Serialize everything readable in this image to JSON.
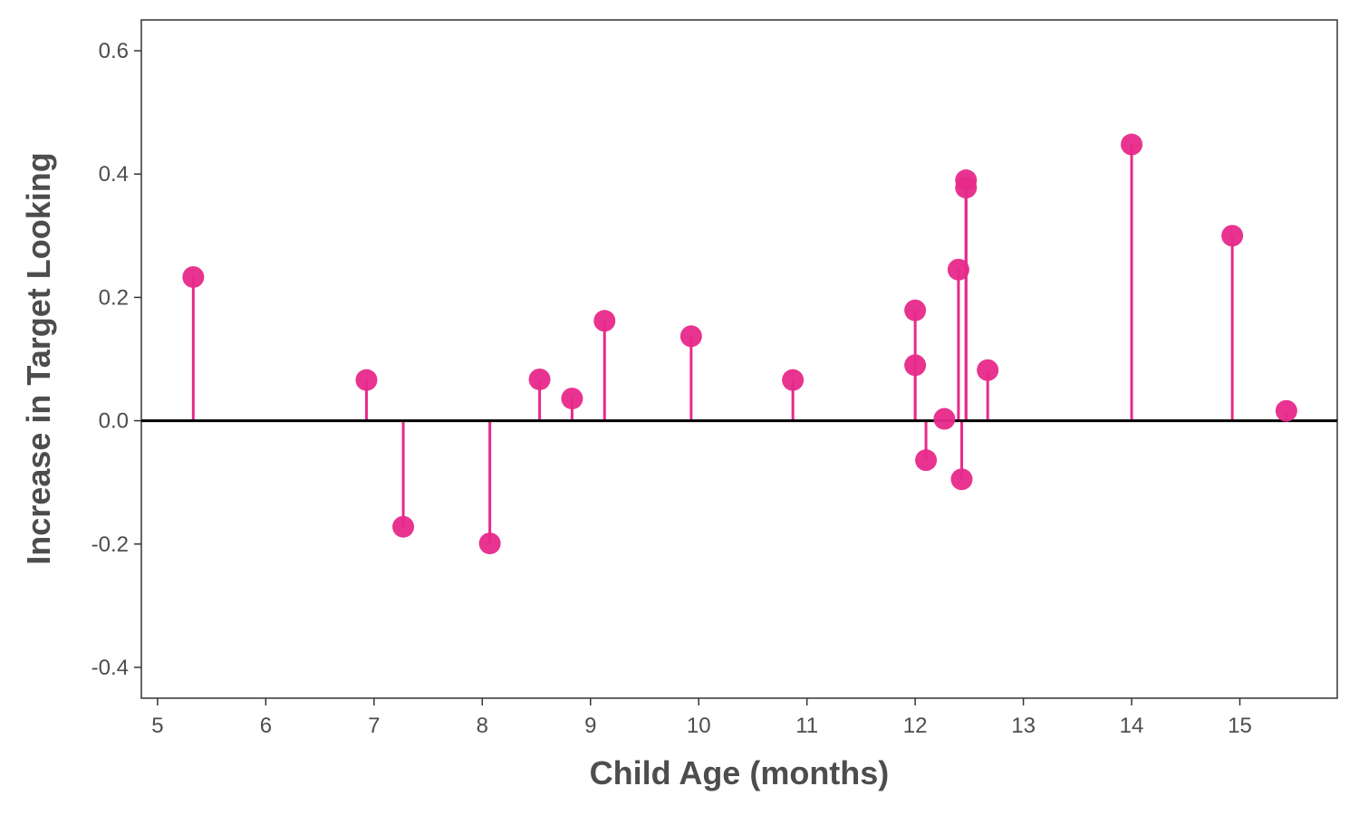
{
  "chart_data": {
    "type": "scatter",
    "style": "lollipop",
    "xlabel": "Child Age (months)",
    "ylabel": "Increase in Target Looking",
    "xlim": [
      4.85,
      15.9
    ],
    "ylim": [
      -0.45,
      0.65
    ],
    "xticks": [
      5,
      6,
      7,
      8,
      9,
      10,
      11,
      12,
      13,
      14,
      15
    ],
    "yticks": [
      -0.4,
      -0.2,
      0.0,
      0.2,
      0.4,
      0.6
    ],
    "ytick_labels": [
      "-0.4",
      "-0.2",
      "0.0",
      "0.2",
      "0.4",
      "0.6"
    ],
    "reference_line_y": 0.0,
    "grid": false,
    "colors": {
      "point": "#e7298a",
      "reference_line": "#000000",
      "axis": "#333333",
      "text": "#4d4d4d"
    },
    "points": [
      {
        "x": 5.33,
        "y": 0.233
      },
      {
        "x": 6.93,
        "y": 0.066
      },
      {
        "x": 7.27,
        "y": -0.172
      },
      {
        "x": 8.07,
        "y": -0.199
      },
      {
        "x": 8.53,
        "y": 0.067
      },
      {
        "x": 8.83,
        "y": 0.036
      },
      {
        "x": 9.13,
        "y": 0.162
      },
      {
        "x": 9.93,
        "y": 0.137
      },
      {
        "x": 10.87,
        "y": 0.066
      },
      {
        "x": 12.0,
        "y": 0.179
      },
      {
        "x": 12.0,
        "y": 0.09
      },
      {
        "x": 12.1,
        "y": -0.064
      },
      {
        "x": 12.27,
        "y": 0.003
      },
      {
        "x": 12.4,
        "y": 0.245
      },
      {
        "x": 12.43,
        "y": -0.095
      },
      {
        "x": 12.47,
        "y": 0.39
      },
      {
        "x": 12.47,
        "y": 0.378
      },
      {
        "x": 12.67,
        "y": 0.082
      },
      {
        "x": 14.0,
        "y": 0.448
      },
      {
        "x": 14.93,
        "y": 0.3
      },
      {
        "x": 15.43,
        "y": 0.016
      }
    ]
  }
}
